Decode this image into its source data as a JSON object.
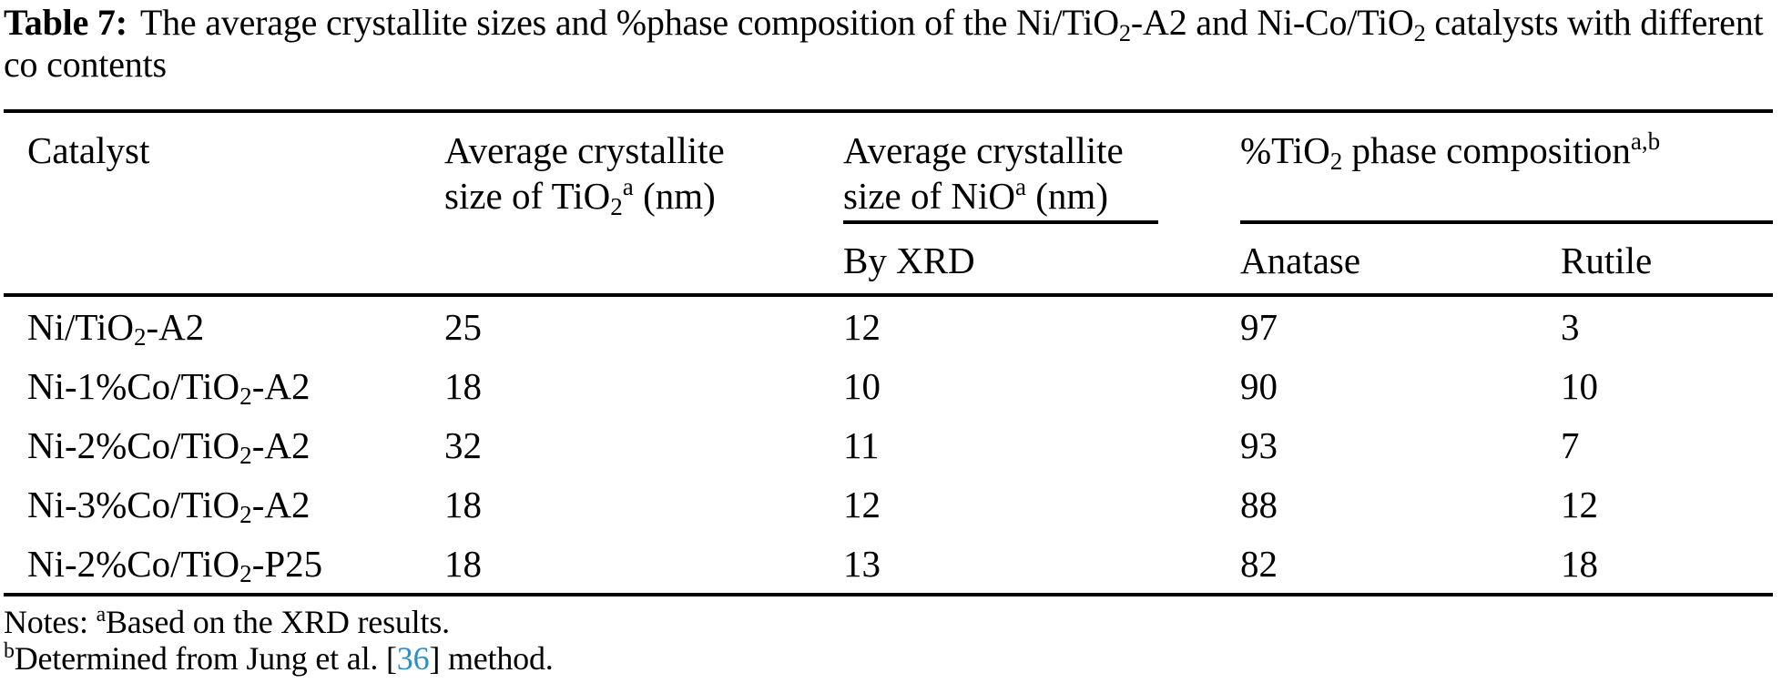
{
  "page": {
    "background": "#ffffff",
    "text_color": "#000000",
    "link_color": "#2B8FC8"
  },
  "title": {
    "label": "Table 7:",
    "text": "The average crystallite sizes and %phase composition of the Ni/TiO_{2}-A2 and Ni-Co/TiO_{2} catalysts with different co contents"
  },
  "table": {
    "header": {
      "catalyst": "Catalyst",
      "tio2_group": "Average crystallite size of TiO_{2}^{a} (nm)",
      "nio_group": "Average crystallite size of NiO^{a} (nm)",
      "phase_group": "%TiO_{2} phase composition^{a,b}",
      "nio_sub": "By XRD",
      "anatase": "Anatase",
      "rutile": "Rutile"
    },
    "rows": [
      {
        "catalyst": "Ni/TiO_{2}-A2",
        "tio2_size": "25",
        "nio_size": "12",
        "anatase": "97",
        "rutile": "3"
      },
      {
        "catalyst": "Ni-1%Co/TiO_{2}-A2",
        "tio2_size": "18",
        "nio_size": "10",
        "anatase": "90",
        "rutile": "10"
      },
      {
        "catalyst": "Ni-2%Co/TiO_{2}-A2",
        "tio2_size": "32",
        "nio_size": "11",
        "anatase": "93",
        "rutile": "7"
      },
      {
        "catalyst": "Ni-3%Co/TiO_{2}-A2",
        "tio2_size": "18",
        "nio_size": "12",
        "anatase": "88",
        "rutile": "12"
      },
      {
        "catalyst": "Ni-2%Co/TiO_{2}-P25",
        "tio2_size": "18",
        "nio_size": "13",
        "anatase": "82",
        "rutile": "18"
      }
    ]
  },
  "notes": {
    "line1": "Notes: ^{a}Based on the XRD results.",
    "line2_pre": "^{b}Determined from Jung et al. [",
    "line2_ref": "36",
    "line2_post": "] method."
  }
}
